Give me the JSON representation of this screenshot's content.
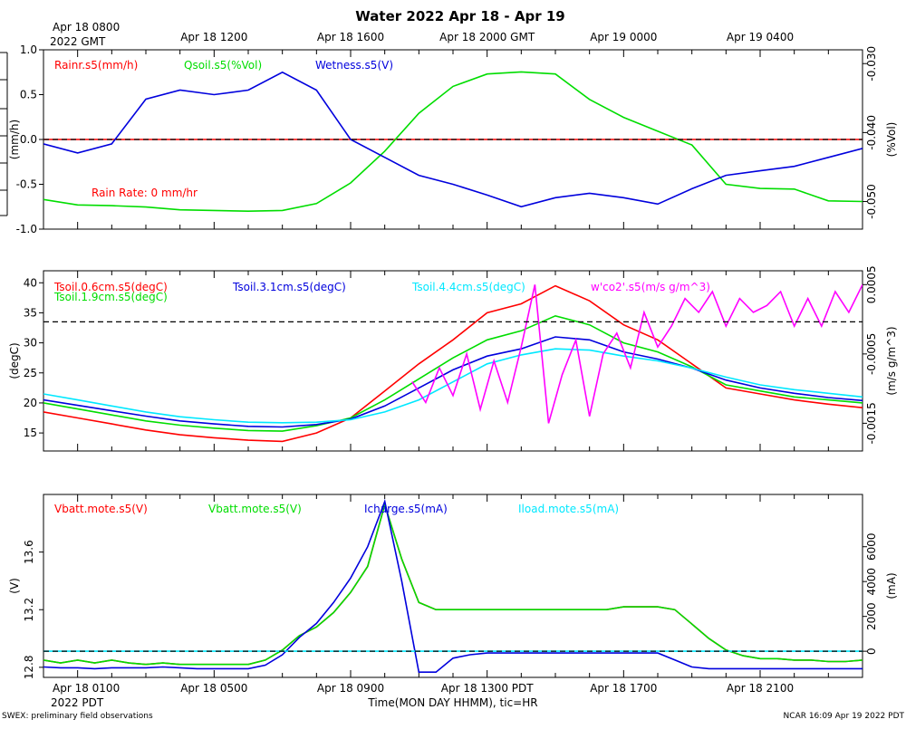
{
  "title": "Water 2022 Apr 18 - Apr 19",
  "colors": {
    "red": "#ff0000",
    "green": "#00dd00",
    "blue": "#0000dd",
    "cyan": "#00e8ff",
    "magenta": "#ff00ff",
    "black": "#000000"
  },
  "top_axis": {
    "corner_label_line1": "Apr 18 0800",
    "corner_label_line2": "2022 GMT",
    "tick_labels": [
      "Apr 18 1200",
      "Apr 18 1600",
      "Apr 18 2000 GMT",
      "Apr 19 0000",
      "Apr 19 0400"
    ]
  },
  "bottom_axis": {
    "corner_label_line1": "Apr 18 0100",
    "corner_label_line2": "2022 PDT",
    "tick_labels": [
      "Apr 18 0500",
      "Apr 18 0900",
      "Apr 18 1300 PDT",
      "Apr 18 1700",
      "Apr 18 2100"
    ],
    "xlabel": "Time(MON DAY HHMM), tic=HR"
  },
  "footer": {
    "left": "SWEX: preliminary field observations",
    "right": "NCAR 16:09 Apr 19 2022 PDT"
  },
  "chart_data": [
    {
      "type": "line",
      "panel": "top",
      "x_unit": "hours since Apr 18 0000 PDT",
      "xlim": [
        0,
        24
      ],
      "ylabel": "(mm/h)",
      "ylim": [
        -1.0,
        1.0
      ],
      "yticks": [
        "1.0",
        "0.5",
        "0.0",
        "-0.5",
        "-1.0"
      ],
      "ytick_values": [
        1.0,
        0.5,
        0.0,
        -0.5,
        -1.0
      ],
      "y2label": "(%Vol)",
      "y2lim": [
        -0.054,
        -0.028
      ],
      "y2ticks": [
        "-0.030",
        "-0.040",
        "-0.050"
      ],
      "y2tick_values": [
        -0.03,
        -0.04,
        -0.05
      ],
      "annotation": "Rain Rate: 0 mm/hr",
      "reference_line": {
        "axis": "left",
        "value": 0.0
      },
      "series": [
        {
          "name": "Rainr.s5(mm/h)",
          "color": "red",
          "axis": "left",
          "x": [
            0,
            24
          ],
          "values": [
            0,
            0
          ]
        },
        {
          "name": "Qsoil.s5(%Vol)",
          "color": "green",
          "axis": "right",
          "x": [
            0,
            1,
            2,
            3,
            4,
            5,
            6,
            7,
            8,
            9,
            10,
            11,
            12,
            13,
            14,
            15,
            16,
            17,
            18,
            19,
            20,
            21,
            22,
            23,
            24
          ],
          "values": [
            -0.0497,
            -0.0505,
            -0.0506,
            -0.0508,
            -0.0512,
            -0.0513,
            -0.0514,
            -0.0513,
            -0.0503,
            -0.0473,
            -0.0427,
            -0.0372,
            -0.0333,
            -0.0315,
            -0.0312,
            -0.0315,
            -0.0352,
            -0.0378,
            -0.0398,
            -0.0418,
            -0.0475,
            -0.0481,
            -0.0482,
            -0.0499,
            -0.05
          ]
        },
        {
          "name": "Wetness.s5(V)",
          "color": "blue",
          "axis": "left",
          "x": [
            0,
            1,
            2,
            3,
            4,
            5,
            6,
            7,
            8,
            9,
            10,
            11,
            12,
            13,
            14,
            15,
            16,
            17,
            18,
            19,
            20,
            21,
            22,
            23,
            24
          ],
          "values": [
            -0.05,
            -0.15,
            -0.05,
            0.45,
            0.55,
            0.5,
            0.55,
            0.75,
            0.55,
            0.0,
            -0.2,
            -0.4,
            -0.5,
            -0.62,
            -0.75,
            -0.65,
            -0.6,
            -0.65,
            -0.72,
            -0.55,
            -0.4,
            -0.35,
            -0.3,
            -0.2,
            -0.1
          ]
        }
      ],
      "legend": [
        "Rainr.s5(mm/h)",
        "Qsoil.s5(%Vol)",
        "Wetness.s5(V)"
      ]
    },
    {
      "type": "line",
      "panel": "middle",
      "x_unit": "hours since Apr 18 0000 PDT",
      "xlim": [
        0,
        24
      ],
      "ylabel": "(degC)",
      "ylim": [
        12,
        42
      ],
      "yticks": [
        "40",
        "35",
        "30",
        "25",
        "20",
        "15"
      ],
      "ytick_values": [
        40,
        35,
        30,
        25,
        20,
        15
      ],
      "y2label": "(m/s g/m^3)",
      "y2lim": [
        -0.0019,
        0.0007
      ],
      "y2ticks": [
        "0.0005",
        "-0.0005",
        "-0.0015"
      ],
      "y2tick_values": [
        0.0005,
        -0.0005,
        -0.0015
      ],
      "reference_line": {
        "axis": "left",
        "value": 33.5
      },
      "series": [
        {
          "name": "Tsoil.0.6cm.s5(degC)",
          "color": "red",
          "axis": "left",
          "x": [
            0,
            1,
            2,
            3,
            4,
            5,
            6,
            7,
            8,
            9,
            10,
            11,
            12,
            13,
            14,
            15,
            16,
            17,
            18,
            19,
            20,
            21,
            22,
            23,
            24
          ],
          "values": [
            18.5,
            17.5,
            16.5,
            15.5,
            14.7,
            14.2,
            13.8,
            13.6,
            15.0,
            17.5,
            22.0,
            26.5,
            30.5,
            35.0,
            36.5,
            39.5,
            37.0,
            33.0,
            30.5,
            26.5,
            22.5,
            21.5,
            20.5,
            19.8,
            19.2
          ]
        },
        {
          "name": "Tsoil.1.9cm.s5(degC)",
          "color": "green",
          "axis": "left",
          "x": [
            0,
            1,
            2,
            3,
            4,
            5,
            6,
            7,
            8,
            9,
            10,
            11,
            12,
            13,
            14,
            15,
            16,
            17,
            18,
            19,
            20,
            21,
            22,
            23,
            24
          ],
          "values": [
            20.0,
            19.0,
            18.0,
            17.0,
            16.3,
            15.8,
            15.4,
            15.3,
            16.2,
            17.5,
            20.5,
            24.0,
            27.5,
            30.5,
            32.0,
            34.5,
            33.0,
            30.0,
            28.5,
            26.0,
            23.0,
            22.0,
            21.0,
            20.5,
            20.0
          ]
        },
        {
          "name": "Tsoil.3.1cm.s5(degC)",
          "color": "blue",
          "axis": "left",
          "x": [
            0,
            1,
            2,
            3,
            4,
            5,
            6,
            7,
            8,
            9,
            10,
            11,
            12,
            13,
            14,
            15,
            16,
            17,
            18,
            19,
            20,
            21,
            22,
            23,
            24
          ],
          "values": [
            20.5,
            19.6,
            18.7,
            17.8,
            17.0,
            16.5,
            16.1,
            16.0,
            16.4,
            17.3,
            19.5,
            22.5,
            25.5,
            27.8,
            29.0,
            31.0,
            30.5,
            28.5,
            27.3,
            25.8,
            23.8,
            22.5,
            21.6,
            20.9,
            20.4
          ]
        },
        {
          "name": "Tsoil.4.4cm.s5(degC)",
          "color": "cyan",
          "axis": "left",
          "x": [
            0,
            1,
            2,
            3,
            4,
            5,
            6,
            7,
            8,
            9,
            10,
            11,
            12,
            13,
            14,
            15,
            16,
            17,
            18,
            19,
            20,
            21,
            22,
            23,
            24
          ],
          "values": [
            21.5,
            20.5,
            19.5,
            18.5,
            17.7,
            17.2,
            16.8,
            16.7,
            16.8,
            17.2,
            18.5,
            20.5,
            23.5,
            26.5,
            28.0,
            29.0,
            28.8,
            27.8,
            27.0,
            25.8,
            24.3,
            23.0,
            22.2,
            21.6,
            21.0
          ]
        },
        {
          "name": "w'co2'.s5(m/s g/m^3)",
          "color": "magenta",
          "axis": "right",
          "x": [
            10.8,
            11.2,
            11.6,
            12.0,
            12.4,
            12.8,
            13.2,
            13.6,
            14.0,
            14.4,
            14.8,
            15.2,
            15.6,
            16.0,
            16.4,
            16.8,
            17.2,
            17.6,
            18.0,
            18.4,
            18.8,
            19.2,
            19.6,
            20.0,
            20.4,
            20.8,
            21.2,
            21.6,
            22.0,
            22.4,
            22.8,
            23.2,
            23.6,
            24.0
          ],
          "values": [
            -0.0009,
            -0.0012,
            -0.0007,
            -0.0011,
            -0.0005,
            -0.0013,
            -0.0006,
            -0.0012,
            -0.0004,
            0.0005,
            -0.0015,
            -0.0008,
            -0.0003,
            -0.0014,
            -0.0005,
            -0.0002,
            -0.0007,
            0.0001,
            -0.0004,
            -0.0001,
            0.0003,
            0.0001,
            0.0004,
            -0.0001,
            0.0003,
            0.0001,
            0.0002,
            0.0004,
            -0.0001,
            0.0003,
            -0.0001,
            0.0004,
            0.0001,
            0.0005
          ]
        }
      ],
      "legend": [
        "Tsoil.0.6cm.s5(degC)",
        "Tsoil.1.9cm.s5(degC)",
        "Tsoil.3.1cm.s5(degC)",
        "Tsoil.4.4cm.s5(degC)",
        "w'co2'.s5(m/s g/m^3)"
      ]
    },
    {
      "type": "line",
      "panel": "bottom",
      "x_unit": "hours since Apr 18 0000 PDT",
      "xlim": [
        0,
        24
      ],
      "ylabel": "(V)",
      "ylim": [
        12.73,
        14.0
      ],
      "yticks": [
        "13.6",
        "13.2",
        "12.8"
      ],
      "ytick_values": [
        13.6,
        13.2,
        12.8
      ],
      "y2label": "(mA)",
      "y2lim": [
        -1500,
        9000
      ],
      "y2ticks": [
        "6000",
        "4000",
        "2000",
        "0"
      ],
      "y2tick_values": [
        6000,
        4000,
        2000,
        0
      ],
      "reference_line": {
        "axis": "right",
        "value": 0
      },
      "series": [
        {
          "name": "Vbatt.mote.s5(V)",
          "color": "red",
          "axis": "left",
          "x": [
            0,
            0.5,
            1,
            1.5,
            2,
            2.5,
            3,
            3.5,
            4,
            4.5,
            5,
            5.5,
            6,
            6.5,
            7,
            7.5,
            8,
            8.5,
            9,
            9.5,
            10,
            10.5,
            11,
            11.5,
            12,
            12.5,
            13,
            13.5,
            14,
            14.5,
            15,
            15.5,
            16,
            16.5,
            17,
            17.5,
            18,
            18.5,
            19,
            19.5,
            20,
            20.5,
            21,
            21.5,
            22,
            22.5,
            23,
            23.5,
            24
          ],
          "values": [
            12.85,
            12.83,
            12.85,
            12.83,
            12.85,
            12.83,
            12.82,
            12.83,
            12.82,
            12.82,
            12.82,
            12.82,
            12.82,
            12.85,
            12.92,
            13.02,
            13.08,
            13.18,
            13.32,
            13.5,
            13.93,
            13.55,
            13.25,
            13.2,
            13.2,
            13.2,
            13.2,
            13.2,
            13.2,
            13.2,
            13.2,
            13.2,
            13.2,
            13.2,
            13.22,
            13.22,
            13.22,
            13.2,
            13.1,
            13.0,
            12.92,
            12.88,
            12.86,
            12.86,
            12.85,
            12.85,
            12.84,
            12.84,
            12.85
          ]
        },
        {
          "name": "Vbatt.mote.s5(V)",
          "color": "green",
          "axis": "left",
          "x": [
            0,
            0.5,
            1,
            1.5,
            2,
            2.5,
            3,
            3.5,
            4,
            4.5,
            5,
            5.5,
            6,
            6.5,
            7,
            7.5,
            8,
            8.5,
            9,
            9.5,
            10,
            10.5,
            11,
            11.5,
            12,
            12.5,
            13,
            13.5,
            14,
            14.5,
            15,
            15.5,
            16,
            16.5,
            17,
            17.5,
            18,
            18.5,
            19,
            19.5,
            20,
            20.5,
            21,
            21.5,
            22,
            22.5,
            23,
            23.5,
            24
          ],
          "values": [
            12.85,
            12.83,
            12.85,
            12.83,
            12.85,
            12.83,
            12.82,
            12.83,
            12.82,
            12.82,
            12.82,
            12.82,
            12.82,
            12.85,
            12.92,
            13.02,
            13.08,
            13.18,
            13.32,
            13.5,
            13.93,
            13.55,
            13.25,
            13.2,
            13.2,
            13.2,
            13.2,
            13.2,
            13.2,
            13.2,
            13.2,
            13.2,
            13.2,
            13.2,
            13.22,
            13.22,
            13.22,
            13.2,
            13.1,
            13.0,
            12.92,
            12.88,
            12.86,
            12.86,
            12.85,
            12.85,
            12.84,
            12.84,
            12.85
          ]
        },
        {
          "name": "Icharge.s5(mA)",
          "color": "blue",
          "axis": "right",
          "x": [
            0,
            0.5,
            1,
            1.5,
            2,
            2.5,
            3,
            3.5,
            4,
            4.5,
            5,
            5.5,
            6,
            6.5,
            7,
            7.5,
            8,
            8.5,
            9,
            9.5,
            10,
            10.5,
            11,
            11.5,
            12,
            12.5,
            13,
            13.5,
            14,
            14.5,
            15,
            15.5,
            16,
            16.5,
            17,
            17.5,
            18,
            18.5,
            19,
            19.5,
            20,
            20.5,
            21,
            21.5,
            22,
            22.5,
            23,
            23.5,
            24
          ],
          "values": [
            -900,
            -950,
            -950,
            -1000,
            -950,
            -950,
            -950,
            -900,
            -950,
            -1000,
            -1000,
            -1000,
            -1000,
            -800,
            -200,
            800,
            1600,
            2800,
            4200,
            6000,
            8600,
            4000,
            -1200,
            -1200,
            -400,
            -200,
            -100,
            -100,
            -100,
            -100,
            -100,
            -100,
            -100,
            -100,
            -100,
            -100,
            -100,
            -500,
            -900,
            -1000,
            -1000,
            -1000,
            -1000,
            -1000,
            -1000,
            -1000,
            -1000,
            -1000,
            -1000
          ]
        },
        {
          "name": "Iload.mote.s5(mA)",
          "color": "cyan",
          "axis": "right",
          "x": [
            0,
            24
          ],
          "values": [
            0,
            0
          ]
        }
      ],
      "legend": [
        "Vbatt.mote.s5(V)",
        "Vbatt.mote.s5(V)",
        "Icharge.s5(mA)",
        "Iload.mote.s5(mA)"
      ]
    }
  ]
}
